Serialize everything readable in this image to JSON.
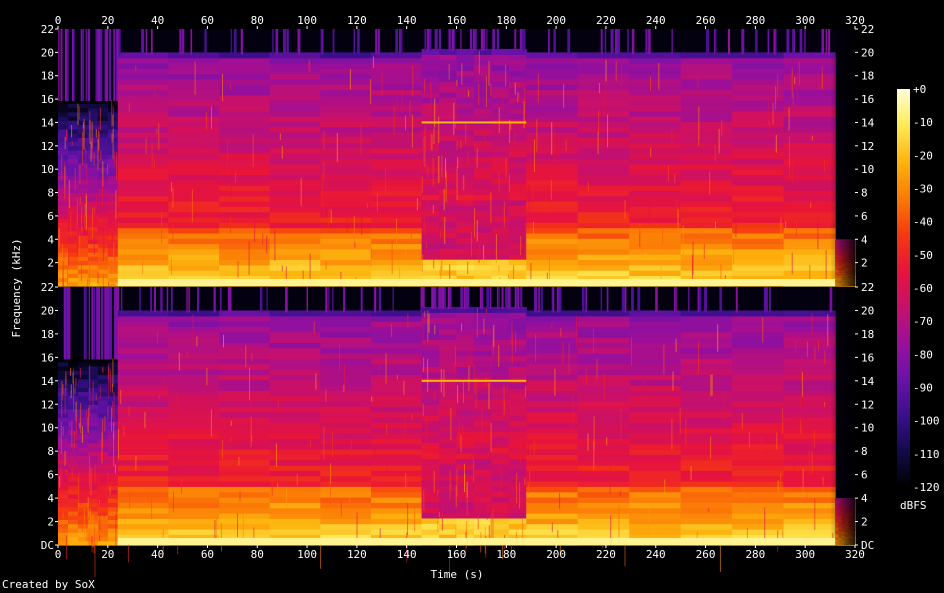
{
  "chart_data": {
    "type": "heatmap",
    "title": "",
    "xlabel": "Time (s)",
    "ylabel": "Frequency (kHz)",
    "xlim": [
      0,
      320
    ],
    "ylim": [
      0,
      22
    ],
    "x_ticks": [
      0,
      20,
      40,
      60,
      80,
      100,
      120,
      140,
      160,
      180,
      200,
      220,
      240,
      260,
      280,
      300,
      320
    ],
    "y_ticks": [
      0,
      2,
      4,
      6,
      8,
      10,
      12,
      14,
      16,
      18,
      20,
      22
    ],
    "y_tick_labels": [
      "DC",
      "2",
      "4",
      "6",
      "8",
      "10",
      "12",
      "14",
      "16",
      "18",
      "20",
      "22"
    ],
    "channels": 2,
    "colorbar": {
      "label": "dBFS",
      "range": [
        -120,
        0
      ],
      "ticks": [
        "+0",
        "-10",
        "-20",
        "-30",
        "-40",
        "-50",
        "-60",
        "-70",
        "-80",
        "-90",
        "-100",
        "-110",
        "-120"
      ],
      "colors": [
        "#000000",
        "#120b4a",
        "#3b0f8c",
        "#6a12a8",
        "#9b0f9a",
        "#c8106a",
        "#e8143a",
        "#f53a10",
        "#fb7b06",
        "#fdb40e",
        "#feea55",
        "#ffffd8"
      ]
    },
    "segments": [
      {
        "t": [
          0,
          24
        ],
        "band_top_khz": 16,
        "level": "low"
      },
      {
        "t": [
          24,
          146
        ],
        "band_top_khz": 20,
        "level": "high"
      },
      {
        "t": [
          146,
          188
        ],
        "band_top_khz": 20.3,
        "level": "sparse"
      },
      {
        "t": [
          188,
          312
        ],
        "band_top_khz": 20,
        "level": "high"
      },
      {
        "t": [
          312,
          320
        ],
        "band_top_khz": 4,
        "level": "fade"
      }
    ]
  },
  "footer": {
    "credit": "Created by SoX"
  }
}
